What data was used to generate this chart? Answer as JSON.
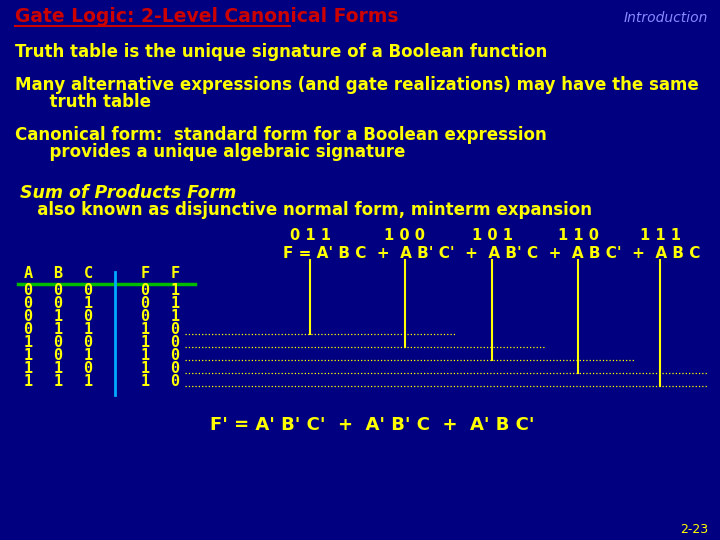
{
  "bg_color": "#000080",
  "title": "Gate Logic: 2-Level Canonical Forms",
  "title_color": "#CC0000",
  "intro_label": "Introduction",
  "intro_color": "#8888FF",
  "text_color": "#FFFF00",
  "line1": "Truth table is the unique signature of a Boolean function",
  "line2a": "Many alternative expressions (and gate realizations) may have the same",
  "line2b": "      truth table",
  "line3a": "Canonical form:  standard form for a Boolean expression",
  "line3b": "      provides a unique algebraic signature",
  "sop_title": "Sum of Products Form",
  "sop_line": "   also known as disjunctive normal form, minterm expansion",
  "table_headers": [
    "A",
    "B",
    "C",
    "F",
    "F"
  ],
  "table_data": [
    [
      0,
      0,
      0,
      0,
      1
    ],
    [
      0,
      0,
      1,
      0,
      1
    ],
    [
      0,
      1,
      0,
      0,
      1
    ],
    [
      0,
      1,
      1,
      1,
      0
    ],
    [
      1,
      0,
      0,
      1,
      0
    ],
    [
      1,
      0,
      1,
      1,
      0
    ],
    [
      1,
      1,
      0,
      1,
      0
    ],
    [
      1,
      1,
      1,
      1,
      0
    ]
  ],
  "green_line_color": "#00BB00",
  "cyan_line_color": "#00AAFF",
  "dotted_line_color": "#FFFF00",
  "slide_num": "2-23",
  "minterm_labels": [
    "0 1 1",
    "1 0 0",
    "1 0 1",
    "1 1 0",
    "1 1 1"
  ]
}
